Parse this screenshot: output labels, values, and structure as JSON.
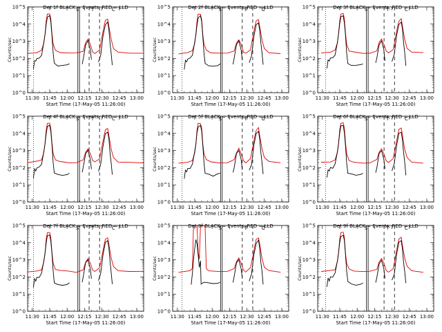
{
  "chart_data": [
    {
      "type": "line",
      "title": "Det 1f BLACK = Events, RED = LLD",
      "xlabel": "Start Time (17-May-05 11:26:00)",
      "ylabel": "Counts/sec",
      "x_ticks": [
        "11:30",
        "11:45",
        "12:00",
        "12:15",
        "12:30",
        "12:45",
        "13:00"
      ],
      "y_ticks": [
        "10^0",
        "10^1",
        "10^2",
        "10^3",
        "10^4",
        "10^5"
      ],
      "ylog": true,
      "ylim": [
        1,
        100000
      ],
      "xlim": [
        "11:26",
        "13:06"
      ],
      "flags": [
        "S",
        "T",
        "C"
      ],
      "series": [
        {
          "name": "Events",
          "color": "#000000"
        },
        {
          "name": "LLD",
          "color": "#dd0000"
        }
      ]
    },
    {
      "type": "line",
      "title": "Det 2f BLACK = Events, RED = LLD",
      "xlabel": "Start Time (17-May-05 11:26:00)",
      "ylabel": "Counts/sec",
      "x_ticks": [
        "11:30",
        "11:45",
        "12:00",
        "12:15",
        "12:30",
        "12:45",
        "13:00"
      ],
      "y_ticks": [
        "10^0",
        "10^1",
        "10^2",
        "10^3",
        "10^4",
        "10^5"
      ],
      "ylog": true,
      "ylim": [
        1,
        100000
      ],
      "xlim": [
        "11:26",
        "13:06"
      ],
      "flags": [
        "S",
        "T",
        "C"
      ],
      "series": [
        {
          "name": "Events",
          "color": "#000000"
        },
        {
          "name": "LLD",
          "color": "#dd0000"
        }
      ]
    },
    {
      "type": "line",
      "title": "Det 3f BLACK = Events, RED = LLD",
      "xlabel": "Start Time (17-May-05 11:26:00)",
      "ylabel": "Counts/sec",
      "x_ticks": [
        "11:30",
        "11:45",
        "12:00",
        "12:15",
        "12:30",
        "12:45",
        "13:00"
      ],
      "y_ticks": [
        "10^0",
        "10^1",
        "10^2",
        "10^3",
        "10^4",
        "10^5"
      ],
      "ylog": true,
      "ylim": [
        1,
        100000
      ],
      "xlim": [
        "11:26",
        "13:06"
      ],
      "flags": [
        "S",
        "T",
        "C"
      ],
      "series": [
        {
          "name": "Events",
          "color": "#000000"
        },
        {
          "name": "LLD",
          "color": "#dd0000"
        }
      ]
    },
    {
      "type": "line",
      "title": "Det 4f BLACK = Events, RED = LLD",
      "xlabel": "Start Time (17-May-05 11:26:00)",
      "ylabel": "Counts/sec",
      "x_ticks": [
        "11:30",
        "11:45",
        "12:00",
        "12:15",
        "12:30",
        "12:45",
        "13:00"
      ],
      "y_ticks": [
        "10^0",
        "10^1",
        "10^2",
        "10^3",
        "10^4",
        "10^5"
      ],
      "ylog": true,
      "ylim": [
        1,
        100000
      ],
      "xlim": [
        "11:26",
        "13:06"
      ],
      "flags": [
        "S",
        "T",
        "C"
      ],
      "series": [
        {
          "name": "Events",
          "color": "#000000"
        },
        {
          "name": "LLD",
          "color": "#dd0000"
        }
      ]
    },
    {
      "type": "line",
      "title": "Det 5f BLACK = Events, RED = LLD",
      "xlabel": "Start Time (17-May-05 11:26:00)",
      "ylabel": "Counts/sec",
      "x_ticks": [
        "11:30",
        "11:45",
        "12:00",
        "12:15",
        "12:30",
        "12:45",
        "13:00"
      ],
      "y_ticks": [
        "10^0",
        "10^1",
        "10^2",
        "10^3",
        "10^4",
        "10^5"
      ],
      "ylog": true,
      "ylim": [
        1,
        100000
      ],
      "xlim": [
        "11:26",
        "13:06"
      ],
      "flags": [
        "S",
        "T",
        "C"
      ],
      "series": [
        {
          "name": "Events",
          "color": "#000000"
        },
        {
          "name": "LLD",
          "color": "#dd0000"
        }
      ]
    },
    {
      "type": "line",
      "title": "Det 6f BLACK = Events, RED = LLD",
      "xlabel": "Start Time (17-May-05 11:26:00)",
      "ylabel": "Counts/sec",
      "x_ticks": [
        "11:30",
        "11:45",
        "12:00",
        "12:15",
        "12:30",
        "12:45",
        "13:00"
      ],
      "y_ticks": [
        "10^0",
        "10^1",
        "10^2",
        "10^3",
        "10^4",
        "10^5"
      ],
      "ylog": true,
      "ylim": [
        1,
        100000
      ],
      "xlim": [
        "11:26",
        "13:06"
      ],
      "flags": [
        "S",
        "T",
        "C"
      ],
      "series": [
        {
          "name": "Events",
          "color": "#000000"
        },
        {
          "name": "LLD",
          "color": "#dd0000"
        }
      ]
    },
    {
      "type": "line",
      "title": "Det 7f BLACK = Events, RED = LLD",
      "xlabel": "Start Time (17-May-05 11:26:00)",
      "ylabel": "Counts/sec",
      "x_ticks": [
        "11:30",
        "11:45",
        "12:00",
        "12:15",
        "12:30",
        "12:45",
        "13:00"
      ],
      "y_ticks": [
        "10^0",
        "10^1",
        "10^2",
        "10^3",
        "10^4",
        "10^5"
      ],
      "ylog": true,
      "ylim": [
        1,
        100000
      ],
      "xlim": [
        "11:26",
        "13:06"
      ],
      "flags": [
        "S",
        "T",
        "C"
      ],
      "series": [
        {
          "name": "Events",
          "color": "#000000"
        },
        {
          "name": "LLD",
          "color": "#dd0000"
        }
      ]
    },
    {
      "type": "line",
      "title": "Det 8f BLACK = Events, RED = LLD",
      "xlabel": "Start Time (17-May-05 11:26:00)",
      "ylabel": "Counts/sec",
      "x_ticks": [
        "11:30",
        "11:45",
        "12:00",
        "12:15",
        "12:30",
        "12:45",
        "13:00"
      ],
      "y_ticks": [
        "10^0",
        "10^1",
        "10^2",
        "10^3",
        "10^4",
        "10^5"
      ],
      "ylog": true,
      "ylim": [
        1,
        100000
      ],
      "xlim": [
        "11:26",
        "13:06"
      ],
      "flags": [
        "S",
        "T",
        "C"
      ],
      "series": [
        {
          "name": "Events",
          "color": "#000000"
        },
        {
          "name": "LLD",
          "color": "#dd0000"
        }
      ]
    },
    {
      "type": "line",
      "title": "Det 9f BLACK = Events, RED = LLD",
      "xlabel": "Start Time (17-May-05 11:26:00)",
      "ylabel": "Counts/sec",
      "x_ticks": [
        "11:30",
        "11:45",
        "12:00",
        "12:15",
        "12:30",
        "12:45",
        "13:00"
      ],
      "y_ticks": [
        "10^0",
        "10^1",
        "10^2",
        "10^3",
        "10^4",
        "10^5"
      ],
      "ylog": true,
      "ylim": [
        1,
        100000
      ],
      "xlim": [
        "11:26",
        "13:06"
      ],
      "flags": [
        "S",
        "T",
        "C"
      ],
      "series": [
        {
          "name": "Events",
          "color": "#000000"
        },
        {
          "name": "LLD",
          "color": "#dd0000"
        }
      ]
    }
  ]
}
